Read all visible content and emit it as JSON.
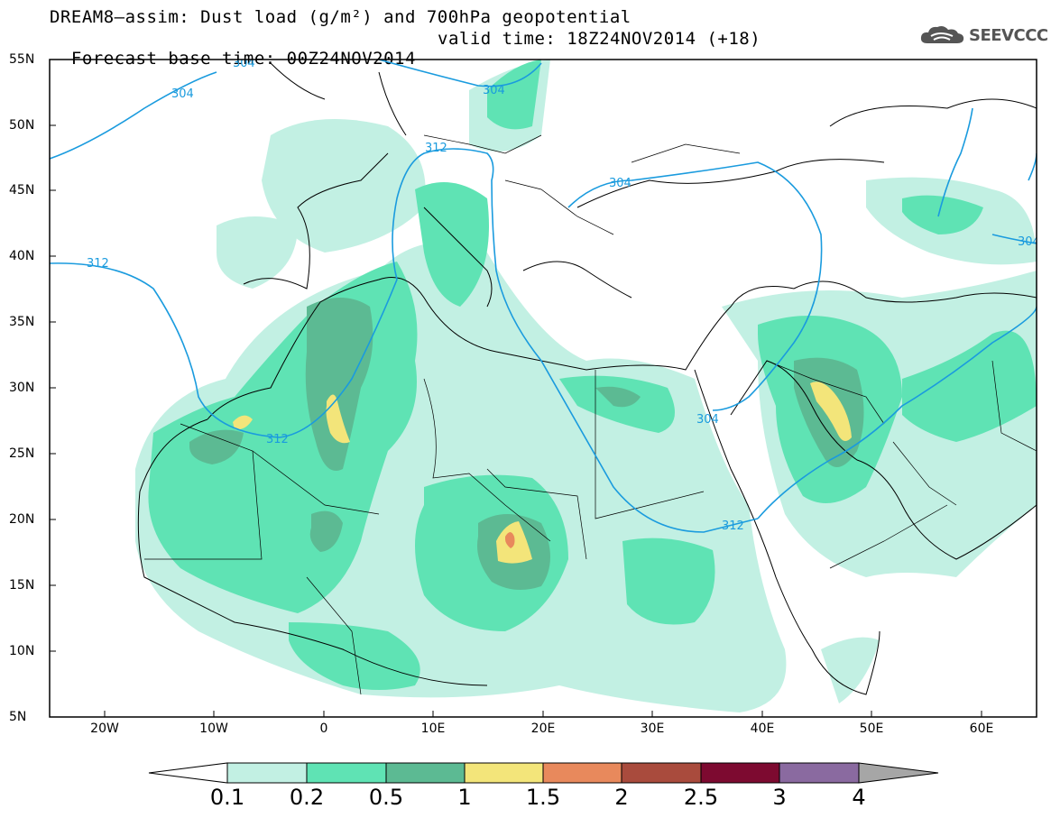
{
  "header": {
    "title": "DREAM8–assim: Dust load (g/m²) and 700hPa geopotential",
    "forecast_base": "Forecast base time: 00Z24NOV2014",
    "valid_time": "valid time: 18Z24NOV2014 (+18)",
    "logo_text": "SEEVCCC",
    "logo_icon": "cloud-icon"
  },
  "map": {
    "lon_range": [
      -25,
      65
    ],
    "lat_range": [
      5,
      55
    ],
    "lat_labels": [
      "55N",
      "50N",
      "45N",
      "40N",
      "35N",
      "30N",
      "25N",
      "20N",
      "15N",
      "10N",
      "5N"
    ],
    "lon_labels": [
      "20W",
      "10W",
      "0",
      "10E",
      "20E",
      "30E",
      "40E",
      "50E",
      "60E"
    ],
    "contour_labels": [
      "304",
      "304",
      "312",
      "304",
      "304",
      "312",
      "312",
      "304",
      "312",
      "304"
    ],
    "contour_color": "#1a9bde"
  },
  "colorbar": {
    "labels": [
      "0.1",
      "0.2",
      "0.5",
      "1",
      "1.5",
      "2",
      "2.5",
      "3",
      "4"
    ],
    "colors": [
      "#c2f0e3",
      "#5fe3b4",
      "#5cba93",
      "#f3e57a",
      "#e8895c",
      "#a94b3d",
      "#7d0a30",
      "#8a6aa0",
      "#a6a6a6"
    ]
  }
}
